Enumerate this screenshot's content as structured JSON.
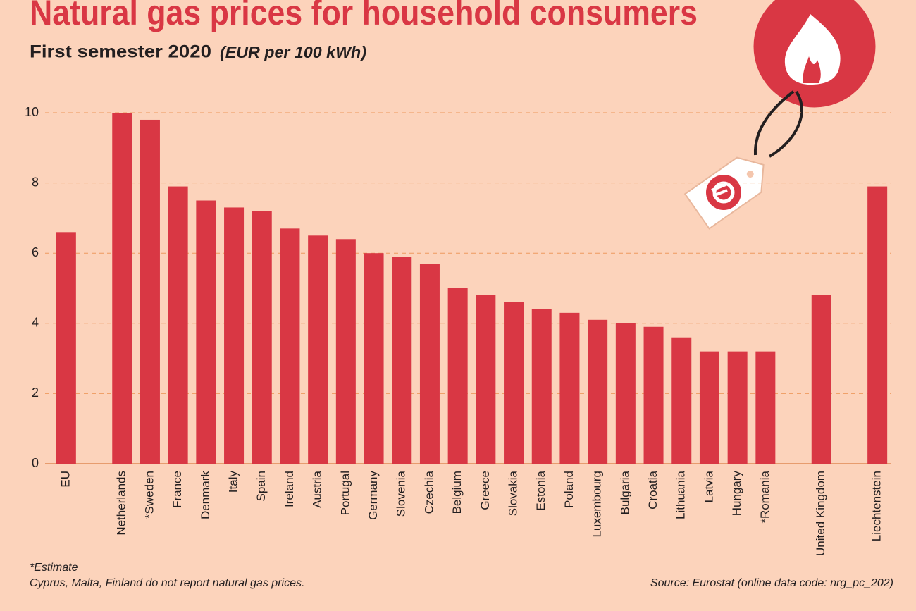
{
  "chart_data": {
    "type": "bar",
    "title": "Natural gas prices for household consumers",
    "subtitle": "First semester 2020",
    "unit": "(EUR per 100 kWh)",
    "categories": [
      "EU",
      null,
      "Netherlands",
      "*Sweden",
      "France",
      "Denmark",
      "Italy",
      "Spain",
      "Ireland",
      "Austria",
      "Portugal",
      "Germany",
      "Slovenia",
      "Czechia",
      "Belgium",
      "Greece",
      "Slovakia",
      "Estonia",
      "Poland",
      "Luxembourg",
      "Bulgaria",
      "Croatia",
      "Lithuania",
      "Latvia",
      "Hungary",
      "*Romania",
      null,
      "United Kingdom",
      null,
      "Liechtenstein"
    ],
    "values": [
      6.6,
      null,
      10.0,
      9.8,
      7.9,
      7.5,
      7.3,
      7.2,
      6.7,
      6.5,
      6.4,
      6.0,
      5.9,
      5.7,
      5.0,
      4.8,
      4.6,
      4.4,
      4.3,
      4.1,
      4.0,
      3.9,
      3.6,
      3.2,
      3.2,
      3.2,
      null,
      4.8,
      null,
      7.9
    ],
    "color": "#d93744",
    "ylim": [
      0,
      10
    ],
    "yticks": [
      0,
      2,
      4,
      6,
      8,
      10
    ],
    "grid": true,
    "notes": [
      "*Estimate",
      "Cyprus, Malta, Finland do not report natural gas prices."
    ],
    "source": "Source: Eurostat (online data code: nrg_pc_202)"
  }
}
